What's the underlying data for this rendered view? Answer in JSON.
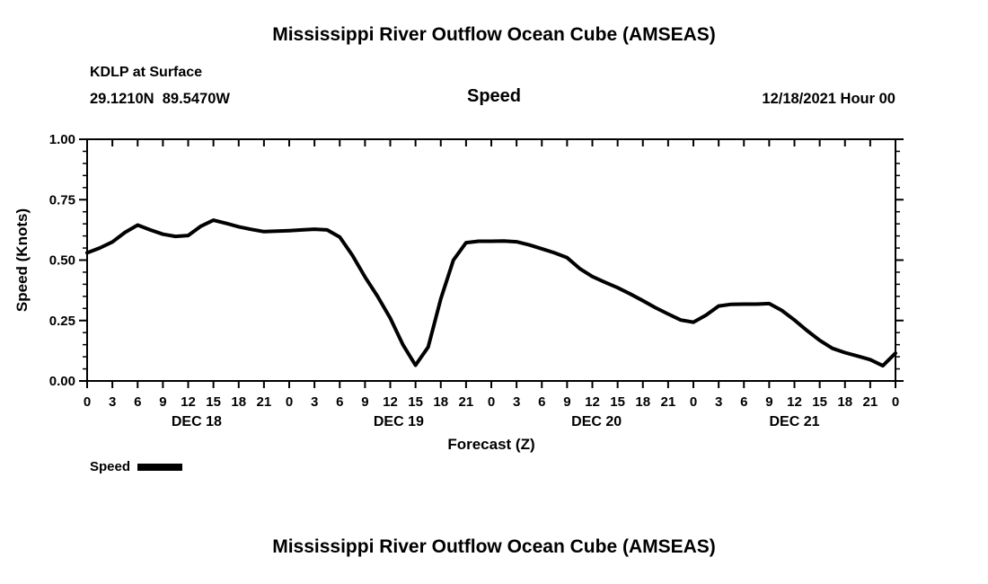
{
  "page": {
    "top_title": "Mississippi River Outflow Ocean Cube (AMSEAS)",
    "bottom_title": "Mississippi River Outflow Ocean Cube (AMSEAS)"
  },
  "header": {
    "station": "KDLP at Surface",
    "coordinates": "29.1210N  89.5470W",
    "variable_title": "Speed",
    "run_time": "12/18/2021 Hour 00"
  },
  "legend": {
    "label": "Speed",
    "color": "#000000"
  },
  "chart_data": {
    "type": "line",
    "title": "Speed",
    "xlabel": "Forecast (Z)",
    "ylabel": "Speed (Knots)",
    "ylim": [
      0.0,
      1.0
    ],
    "yticks": [
      0.0,
      0.25,
      0.5,
      0.75,
      1.0
    ],
    "ytick_labels": [
      "0.00",
      "0.25",
      "0.50",
      "0.75",
      "1.00"
    ],
    "y_minor_step": 0.05,
    "x_hours_range": [
      0,
      96
    ],
    "xtick_interval_hours": 3,
    "xtick_labels": [
      "0",
      "3",
      "6",
      "9",
      "12",
      "15",
      "18",
      "21",
      "0",
      "3",
      "6",
      "9",
      "12",
      "15",
      "18",
      "21",
      "0",
      "3",
      "6",
      "9",
      "12",
      "15",
      "18",
      "21",
      "0",
      "3",
      "6",
      "9",
      "12",
      "15",
      "18",
      "21",
      "0"
    ],
    "day_labels": [
      "DEC 18",
      "DEC 19",
      "DEC 20",
      "DEC 21"
    ],
    "day_label_center_hours": [
      13,
      37,
      60.5,
      84
    ],
    "grid": false,
    "legend_position": "below-left",
    "series": [
      {
        "name": "Speed",
        "color": "#000000",
        "points": [
          [
            0,
            0.53
          ],
          [
            1.5,
            0.55
          ],
          [
            3,
            0.575
          ],
          [
            4.5,
            0.615
          ],
          [
            6,
            0.645
          ],
          [
            7.5,
            0.625
          ],
          [
            9,
            0.607
          ],
          [
            10.5,
            0.598
          ],
          [
            12,
            0.602
          ],
          [
            13.5,
            0.64
          ],
          [
            15,
            0.665
          ],
          [
            16.5,
            0.652
          ],
          [
            18,
            0.638
          ],
          [
            19.5,
            0.627
          ],
          [
            21,
            0.618
          ],
          [
            22.5,
            0.62
          ],
          [
            24,
            0.622
          ],
          [
            25.5,
            0.625
          ],
          [
            27,
            0.628
          ],
          [
            28.5,
            0.625
          ],
          [
            30,
            0.595
          ],
          [
            31.5,
            0.52
          ],
          [
            33,
            0.43
          ],
          [
            34.5,
            0.35
          ],
          [
            36,
            0.26
          ],
          [
            37.5,
            0.15
          ],
          [
            39,
            0.065
          ],
          [
            40.5,
            0.14
          ],
          [
            42,
            0.34
          ],
          [
            43.5,
            0.5
          ],
          [
            45,
            0.572
          ],
          [
            46.5,
            0.578
          ],
          [
            48,
            0.578
          ],
          [
            49.5,
            0.579
          ],
          [
            51,
            0.576
          ],
          [
            52.5,
            0.563
          ],
          [
            54,
            0.547
          ],
          [
            55.5,
            0.53
          ],
          [
            57,
            0.51
          ],
          [
            58.5,
            0.465
          ],
          [
            60,
            0.432
          ],
          [
            61.5,
            0.408
          ],
          [
            63,
            0.386
          ],
          [
            64.5,
            0.36
          ],
          [
            66,
            0.332
          ],
          [
            67.5,
            0.303
          ],
          [
            69,
            0.277
          ],
          [
            70.5,
            0.252
          ],
          [
            72,
            0.243
          ],
          [
            73.5,
            0.272
          ],
          [
            75,
            0.31
          ],
          [
            76.5,
            0.317
          ],
          [
            78,
            0.318
          ],
          [
            79.5,
            0.318
          ],
          [
            81,
            0.32
          ],
          [
            82.5,
            0.292
          ],
          [
            84,
            0.252
          ],
          [
            85.5,
            0.208
          ],
          [
            87,
            0.168
          ],
          [
            88.5,
            0.135
          ],
          [
            90,
            0.117
          ],
          [
            91.5,
            0.103
          ],
          [
            93,
            0.088
          ],
          [
            94.5,
            0.063
          ],
          [
            96,
            0.115
          ]
        ]
      }
    ]
  }
}
